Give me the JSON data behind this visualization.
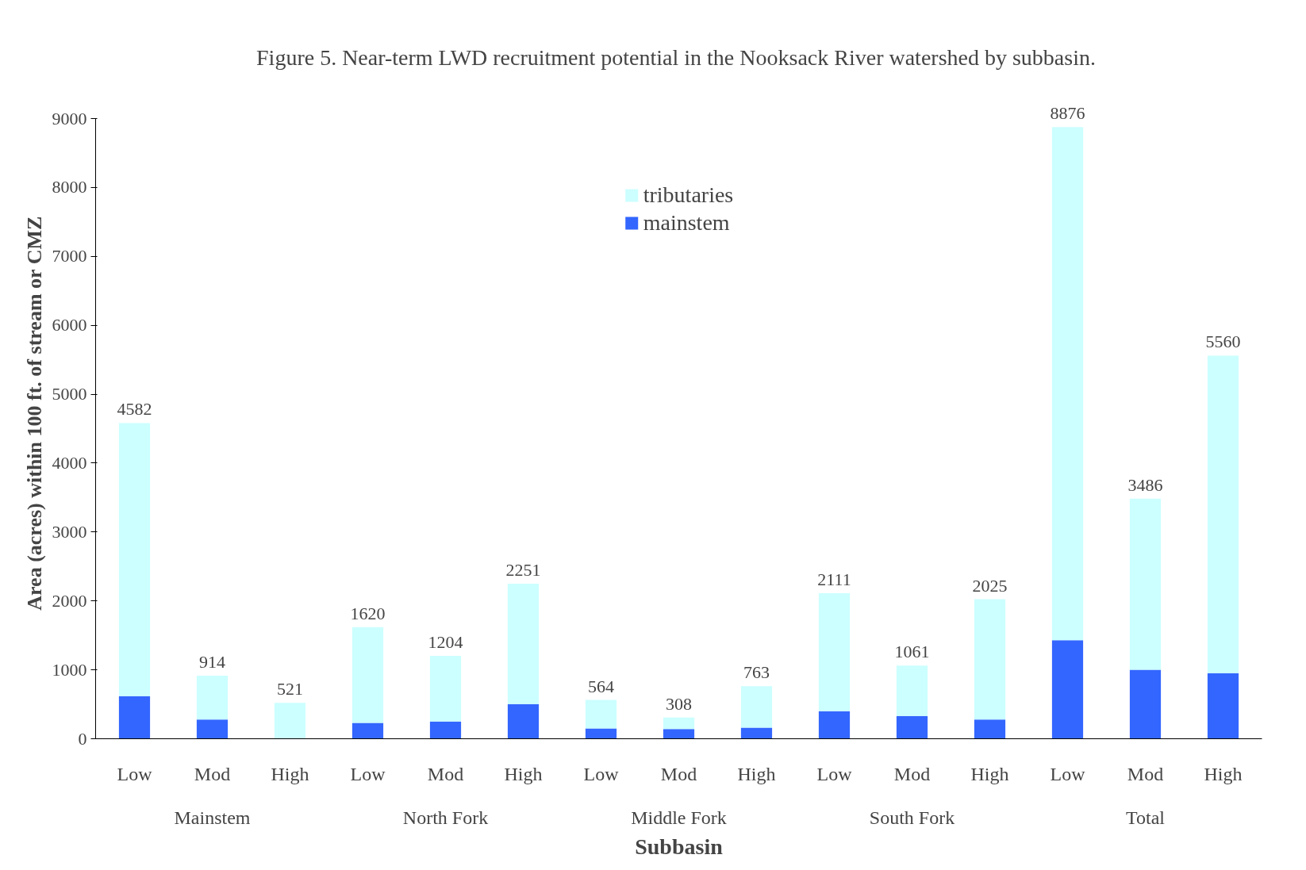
{
  "chart_data": {
    "type": "bar",
    "stacked": true,
    "title": "Figure 5.  Near-term LWD recruitment potential in the Nooksack River watershed by subbasin.",
    "xlabel": "Subbasin",
    "ylabel": "Area (acres) within 100 ft. of stream or CMZ",
    "categories": [
      "Low",
      "Mod",
      "High",
      "Low",
      "Mod",
      "High",
      "Low",
      "Mod",
      "High",
      "Low",
      "Mod",
      "High",
      "Low",
      "Mod",
      "High"
    ],
    "annotations": [
      "Mainstem",
      "North Fork",
      "Middle Fork",
      "South Fork",
      "Total"
    ],
    "series": [
      {
        "name": "mainstem",
        "color": "#3366ff",
        "values": [
          620,
          280,
          0,
          230,
          250,
          500,
          150,
          140,
          160,
          400,
          330,
          280,
          1430,
          1000,
          950
        ]
      },
      {
        "name": "tributaries",
        "color": "#ccffff",
        "values": [
          3962,
          634,
          521,
          1390,
          954,
          1751,
          414,
          168,
          603,
          1711,
          731,
          1745,
          7446,
          2486,
          4610
        ]
      }
    ],
    "totals": [
      "4582",
      "914",
      "521",
      "1620",
      "1204",
      "2251",
      "564",
      "308",
      "763",
      "2111",
      "1061",
      "2025",
      "8876",
      "3486",
      "5560"
    ],
    "ylim": [
      0,
      9000
    ],
    "yticks": [
      0,
      1000,
      2000,
      3000,
      4000,
      5000,
      6000,
      7000,
      8000,
      9000
    ],
    "grid": false,
    "legend": "top"
  }
}
